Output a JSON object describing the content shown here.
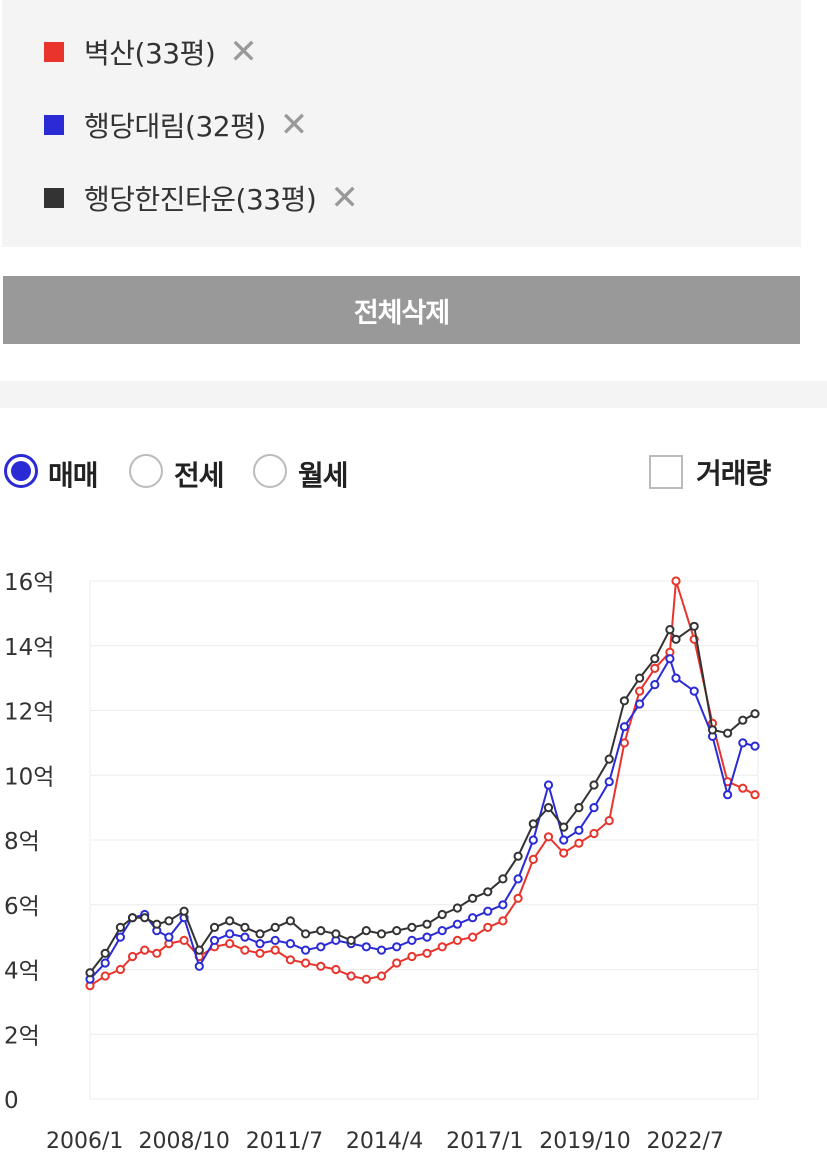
{
  "compare_list": {
    "items": [
      {
        "label": "벽산(33평)",
        "color": "#e8342c",
        "remove_icon": "close-icon"
      },
      {
        "label": "행당대림(32평)",
        "color": "#2b2bd6",
        "remove_icon": "close-icon"
      },
      {
        "label": "행당한진타운(33평)",
        "color": "#333333",
        "remove_icon": "close-icon"
      }
    ],
    "remove_glyph": "✕"
  },
  "delete_all_label": "전체삭제",
  "options": {
    "radios": [
      {
        "label": "매매",
        "checked": true
      },
      {
        "label": "전세",
        "checked": false
      },
      {
        "label": "월세",
        "checked": false
      }
    ],
    "volume_checkbox": {
      "label": "거래량",
      "checked": false
    }
  },
  "chart_data": {
    "type": "line",
    "unit": "억",
    "x_axis_type": "date (year/month)",
    "x_tick_labels": [
      "2006/1",
      "2008/10",
      "2011/7",
      "2014/4",
      "2017/1",
      "2019/10",
      "2022/7"
    ],
    "y_tick_labels": [
      "0",
      "2억",
      "4억",
      "6억",
      "8억",
      "10억",
      "12억",
      "14억",
      "16억"
    ],
    "ylim": [
      0,
      16
    ],
    "xlim": [
      "2006/1",
      "2024/5"
    ],
    "grid": true,
    "legend": "top (separate list above chart)",
    "markers": "hollow circles",
    "series": [
      {
        "name": "벽산(33평)",
        "color": "#e8342c",
        "points": [
          [
            "2006/1",
            3.5
          ],
          [
            "2006/6",
            3.8
          ],
          [
            "2006/11",
            4.0
          ],
          [
            "2007/3",
            4.4
          ],
          [
            "2007/7",
            4.6
          ],
          [
            "2007/11",
            4.5
          ],
          [
            "2008/3",
            4.8
          ],
          [
            "2008/8",
            4.9
          ],
          [
            "2009/1",
            4.4
          ],
          [
            "2009/6",
            4.7
          ],
          [
            "2009/11",
            4.8
          ],
          [
            "2010/4",
            4.6
          ],
          [
            "2010/9",
            4.5
          ],
          [
            "2011/2",
            4.6
          ],
          [
            "2011/7",
            4.3
          ],
          [
            "2011/12",
            4.2
          ],
          [
            "2012/5",
            4.1
          ],
          [
            "2012/10",
            4.0
          ],
          [
            "2013/3",
            3.8
          ],
          [
            "2013/8",
            3.7
          ],
          [
            "2014/1",
            3.8
          ],
          [
            "2014/6",
            4.2
          ],
          [
            "2014/11",
            4.4
          ],
          [
            "2015/4",
            4.5
          ],
          [
            "2015/9",
            4.7
          ],
          [
            "2016/2",
            4.9
          ],
          [
            "2016/7",
            5.0
          ],
          [
            "2016/12",
            5.3
          ],
          [
            "2017/5",
            5.5
          ],
          [
            "2017/10",
            6.2
          ],
          [
            "2018/3",
            7.4
          ],
          [
            "2018/8",
            8.1
          ],
          [
            "2019/1",
            7.6
          ],
          [
            "2019/6",
            7.9
          ],
          [
            "2019/11",
            8.2
          ],
          [
            "2020/4",
            8.6
          ],
          [
            "2020/9",
            11.0
          ],
          [
            "2021/2",
            12.6
          ],
          [
            "2021/7",
            13.3
          ],
          [
            "2021/12",
            13.8
          ],
          [
            "2022/2",
            16.0
          ],
          [
            "2022/8",
            14.2
          ],
          [
            "2023/2",
            11.6
          ],
          [
            "2023/7",
            9.8
          ],
          [
            "2023/12",
            9.6
          ],
          [
            "2024/4",
            9.4
          ]
        ]
      },
      {
        "name": "행당대림(32평)",
        "color": "#2b2bd6",
        "points": [
          [
            "2006/1",
            3.7
          ],
          [
            "2006/6",
            4.2
          ],
          [
            "2006/11",
            5.0
          ],
          [
            "2007/3",
            5.6
          ],
          [
            "2007/7",
            5.7
          ],
          [
            "2007/11",
            5.2
          ],
          [
            "2008/3",
            5.0
          ],
          [
            "2008/8",
            5.6
          ],
          [
            "2009/1",
            4.1
          ],
          [
            "2009/6",
            4.9
          ],
          [
            "2009/11",
            5.1
          ],
          [
            "2010/4",
            5.0
          ],
          [
            "2010/9",
            4.8
          ],
          [
            "2011/2",
            4.9
          ],
          [
            "2011/7",
            4.8
          ],
          [
            "2011/12",
            4.6
          ],
          [
            "2012/5",
            4.7
          ],
          [
            "2012/10",
            4.9
          ],
          [
            "2013/3",
            4.8
          ],
          [
            "2013/8",
            4.7
          ],
          [
            "2014/1",
            4.6
          ],
          [
            "2014/6",
            4.7
          ],
          [
            "2014/11",
            4.9
          ],
          [
            "2015/4",
            5.0
          ],
          [
            "2015/9",
            5.2
          ],
          [
            "2016/2",
            5.4
          ],
          [
            "2016/7",
            5.6
          ],
          [
            "2016/12",
            5.8
          ],
          [
            "2017/5",
            6.0
          ],
          [
            "2017/10",
            6.8
          ],
          [
            "2018/3",
            8.0
          ],
          [
            "2018/8",
            9.7
          ],
          [
            "2019/1",
            8.0
          ],
          [
            "2019/6",
            8.3
          ],
          [
            "2019/11",
            9.0
          ],
          [
            "2020/4",
            9.8
          ],
          [
            "2020/9",
            11.5
          ],
          [
            "2021/2",
            12.2
          ],
          [
            "2021/7",
            12.8
          ],
          [
            "2021/12",
            13.6
          ],
          [
            "2022/2",
            13.0
          ],
          [
            "2022/8",
            12.6
          ],
          [
            "2023/2",
            11.2
          ],
          [
            "2023/7",
            9.4
          ],
          [
            "2023/12",
            11.0
          ],
          [
            "2024/4",
            10.9
          ]
        ]
      },
      {
        "name": "행당한진타운(33평)",
        "color": "#333333",
        "points": [
          [
            "2006/1",
            3.9
          ],
          [
            "2006/6",
            4.5
          ],
          [
            "2006/11",
            5.3
          ],
          [
            "2007/3",
            5.6
          ],
          [
            "2007/7",
            5.6
          ],
          [
            "2007/11",
            5.4
          ],
          [
            "2008/3",
            5.5
          ],
          [
            "2008/8",
            5.8
          ],
          [
            "2009/1",
            4.6
          ],
          [
            "2009/6",
            5.3
          ],
          [
            "2009/11",
            5.5
          ],
          [
            "2010/4",
            5.3
          ],
          [
            "2010/9",
            5.1
          ],
          [
            "2011/2",
            5.3
          ],
          [
            "2011/7",
            5.5
          ],
          [
            "2011/12",
            5.1
          ],
          [
            "2012/5",
            5.2
          ],
          [
            "2012/10",
            5.1
          ],
          [
            "2013/3",
            4.9
          ],
          [
            "2013/8",
            5.2
          ],
          [
            "2014/1",
            5.1
          ],
          [
            "2014/6",
            5.2
          ],
          [
            "2014/11",
            5.3
          ],
          [
            "2015/4",
            5.4
          ],
          [
            "2015/9",
            5.7
          ],
          [
            "2016/2",
            5.9
          ],
          [
            "2016/7",
            6.2
          ],
          [
            "2016/12",
            6.4
          ],
          [
            "2017/5",
            6.8
          ],
          [
            "2017/10",
            7.5
          ],
          [
            "2018/3",
            8.5
          ],
          [
            "2018/8",
            9.0
          ],
          [
            "2019/1",
            8.4
          ],
          [
            "2019/6",
            9.0
          ],
          [
            "2019/11",
            9.7
          ],
          [
            "2020/4",
            10.5
          ],
          [
            "2020/9",
            12.3
          ],
          [
            "2021/2",
            13.0
          ],
          [
            "2021/7",
            13.6
          ],
          [
            "2021/12",
            14.5
          ],
          [
            "2022/2",
            14.2
          ],
          [
            "2022/8",
            14.6
          ],
          [
            "2023/2",
            11.4
          ],
          [
            "2023/7",
            11.3
          ],
          [
            "2023/12",
            11.7
          ],
          [
            "2024/4",
            11.9
          ]
        ]
      }
    ]
  }
}
